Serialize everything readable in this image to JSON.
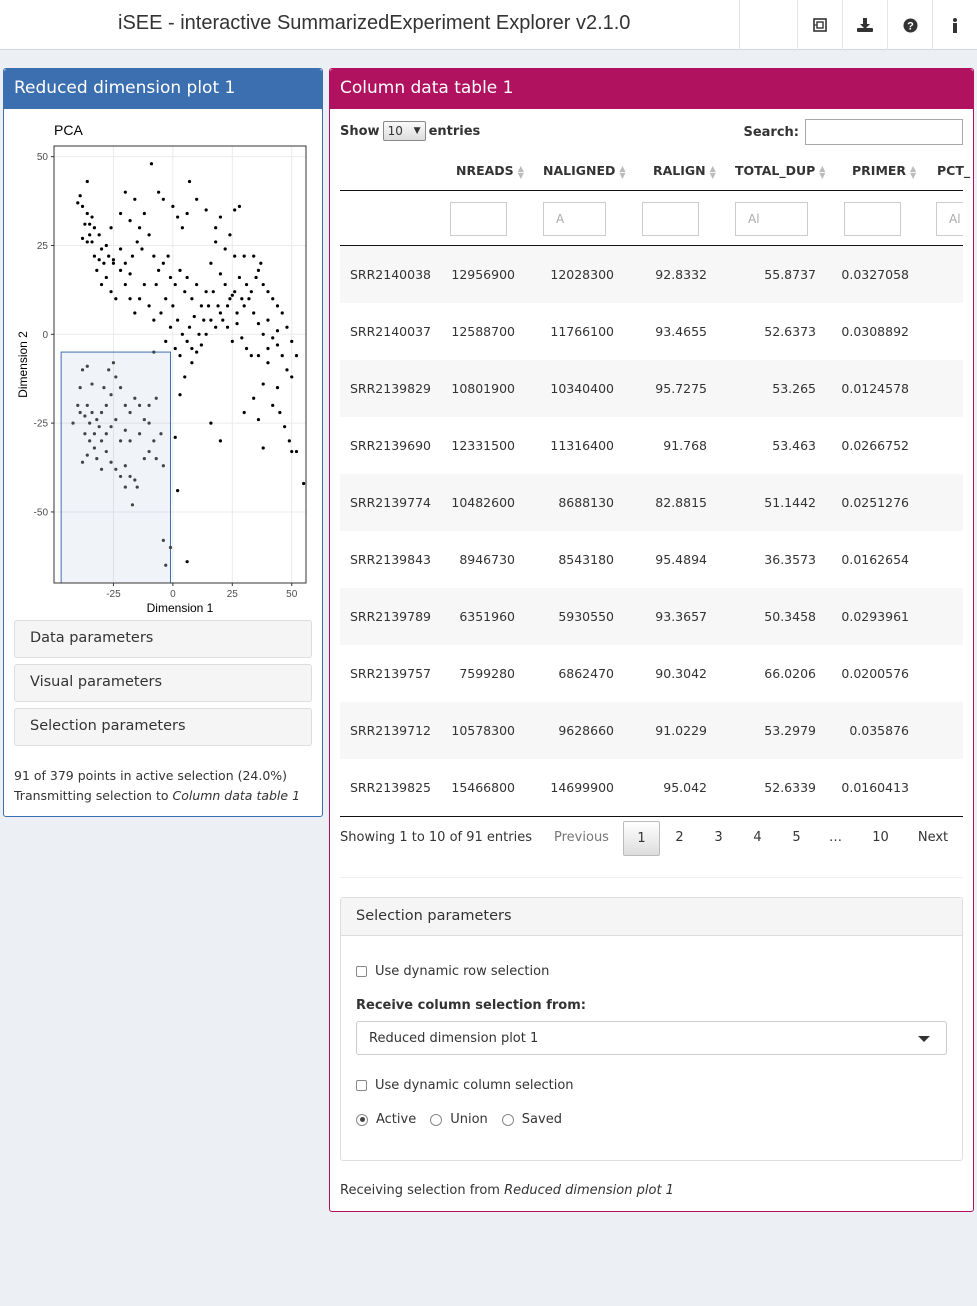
{
  "header": {
    "title": "iSEE - interactive SummarizedExperiment Explorer v2.1.0",
    "icons": [
      "panel-organization-icon",
      "download-icon",
      "help-icon",
      "info-icon"
    ]
  },
  "reduced_panel": {
    "title": "Reduced dimension plot 1",
    "collapsibles": [
      "Data parameters",
      "Visual parameters",
      "Selection parameters"
    ],
    "status_line1": "91 of 379 points in active selection (24.0%)",
    "status_prefix": "Transmitting selection to ",
    "status_target": "Column data table 1"
  },
  "chart_data": {
    "type": "scatter",
    "title": "PCA",
    "xlabel": "Dimension 1",
    "ylabel": "Dimension 2",
    "xlim": [
      -50,
      56
    ],
    "ylim": [
      -70,
      53
    ],
    "xticks": [
      -25,
      0,
      25,
      50
    ],
    "yticks": [
      50,
      25,
      0,
      -25,
      -50
    ],
    "grid": true,
    "selection_brush": {
      "x": [
        -47,
        -1
      ],
      "y": [
        -70,
        -5
      ]
    },
    "points": [
      [
        -9,
        48
      ],
      [
        -36,
        43
      ],
      [
        -39,
        39
      ],
      [
        -40,
        37
      ],
      [
        -38,
        36
      ],
      [
        -36,
        34
      ],
      [
        -34,
        33
      ],
      [
        -35,
        31
      ],
      [
        -37,
        31
      ],
      [
        -33,
        30
      ],
      [
        -35,
        28
      ],
      [
        -38,
        27
      ],
      [
        -36,
        26
      ],
      [
        -34,
        26
      ],
      [
        -31,
        28
      ],
      [
        -33,
        22
      ],
      [
        -31,
        21
      ],
      [
        -29,
        20
      ],
      [
        -27,
        22
      ],
      [
        -25,
        21
      ],
      [
        -22,
        24
      ],
      [
        -20,
        20
      ],
      [
        -18,
        17
      ],
      [
        -17,
        22
      ],
      [
        -15,
        26
      ],
      [
        -13,
        24
      ],
      [
        -10,
        28
      ],
      [
        -8,
        22
      ],
      [
        -6,
        18
      ],
      [
        -7,
        14
      ],
      [
        -4,
        20
      ],
      [
        -2,
        22
      ],
      [
        -1,
        16
      ],
      [
        1,
        14
      ],
      [
        3,
        18
      ],
      [
        5,
        12
      ],
      [
        6,
        16
      ],
      [
        8,
        10
      ],
      [
        10,
        14
      ],
      [
        12,
        8
      ],
      [
        14,
        12
      ],
      [
        16,
        20
      ],
      [
        18,
        26
      ],
      [
        20,
        17
      ],
      [
        22,
        14
      ],
      [
        24,
        10
      ],
      [
        26,
        12
      ],
      [
        28,
        16
      ],
      [
        30,
        8
      ],
      [
        32,
        10
      ],
      [
        34,
        6
      ],
      [
        36,
        3
      ],
      [
        38,
        0
      ],
      [
        40,
        4
      ],
      [
        42,
        -1
      ],
      [
        44,
        -3
      ],
      [
        46,
        -6
      ],
      [
        48,
        -10
      ],
      [
        50,
        -12
      ],
      [
        44,
        -15
      ],
      [
        42,
        -20
      ],
      [
        40,
        -8
      ],
      [
        38,
        -14
      ],
      [
        36,
        -24
      ],
      [
        34,
        -18
      ],
      [
        45,
        -22
      ],
      [
        47,
        -26
      ],
      [
        49,
        -30
      ],
      [
        52,
        -33
      ],
      [
        55,
        -42
      ],
      [
        50,
        -33
      ],
      [
        38,
        -32
      ],
      [
        30,
        -22
      ],
      [
        20,
        -30
      ],
      [
        16,
        -25
      ],
      [
        3,
        -17
      ],
      [
        5,
        -12
      ],
      [
        8,
        -8
      ],
      [
        10,
        -5
      ],
      [
        12,
        -3
      ],
      [
        14,
        0
      ],
      [
        16,
        4
      ],
      [
        18,
        2
      ],
      [
        20,
        6
      ],
      [
        23,
        8
      ],
      [
        25,
        11
      ],
      [
        27,
        3
      ],
      [
        29,
        -1
      ],
      [
        31,
        -4
      ],
      [
        33,
        -6
      ],
      [
        -6,
        40
      ],
      [
        -4,
        38
      ],
      [
        0,
        36
      ],
      [
        2,
        33
      ],
      [
        4,
        30
      ],
      [
        6,
        34
      ],
      [
        7,
        43
      ],
      [
        10,
        38
      ],
      [
        14,
        35
      ],
      [
        18,
        30
      ],
      [
        20,
        33
      ],
      [
        26,
        35
      ],
      [
        28,
        36
      ],
      [
        24,
        28
      ],
      [
        22,
        24
      ],
      [
        26,
        22
      ],
      [
        30,
        22
      ],
      [
        34,
        22
      ],
      [
        36,
        18
      ],
      [
        38,
        14
      ],
      [
        40,
        12
      ],
      [
        42,
        10
      ],
      [
        44,
        8
      ],
      [
        46,
        6
      ],
      [
        48,
        2
      ],
      [
        50,
        -2
      ],
      [
        52,
        -6
      ],
      [
        44,
        1
      ],
      [
        40,
        -4
      ],
      [
        36,
        -6
      ],
      [
        -16,
        6
      ],
      [
        -14,
        10
      ],
      [
        -12,
        14
      ],
      [
        -10,
        8
      ],
      [
        -8,
        4
      ],
      [
        -5,
        6
      ],
      [
        -3,
        10
      ],
      [
        0,
        8
      ],
      [
        2,
        4
      ],
      [
        4,
        0
      ],
      [
        6,
        -2
      ],
      [
        8,
        -4
      ],
      [
        -20,
        14
      ],
      [
        -22,
        18
      ],
      [
        -25,
        20
      ],
      [
        -28,
        16
      ],
      [
        -30,
        14
      ],
      [
        -26,
        12
      ],
      [
        -24,
        10
      ],
      [
        -18,
        10
      ],
      [
        -32,
        18
      ],
      [
        -30,
        24
      ],
      [
        -28,
        25
      ],
      [
        -26,
        30
      ],
      [
        -22,
        34
      ],
      [
        -18,
        32
      ],
      [
        -14,
        30
      ],
      [
        -12,
        34
      ],
      [
        -16,
        38
      ],
      [
        -20,
        40
      ],
      [
        -1,
        2
      ],
      [
        -3,
        -2
      ],
      [
        1,
        -4
      ],
      [
        3,
        -6
      ],
      [
        7,
        2
      ],
      [
        9,
        5
      ],
      [
        11,
        0
      ],
      [
        13,
        4
      ],
      [
        15,
        8
      ],
      [
        17,
        12
      ],
      [
        19,
        8
      ],
      [
        21,
        4
      ],
      [
        23,
        2
      ],
      [
        25,
        -2
      ],
      [
        27,
        6
      ],
      [
        29,
        10
      ],
      [
        31,
        14
      ],
      [
        33,
        12
      ],
      [
        35,
        16
      ],
      [
        37,
        20
      ],
      [
        -38,
        -10
      ],
      [
        -40,
        -20
      ],
      [
        -39,
        -22
      ],
      [
        -37,
        -23
      ],
      [
        -36,
        -20
      ],
      [
        -35,
        -25
      ],
      [
        -34,
        -22
      ],
      [
        -33,
        -28
      ],
      [
        -35,
        -30
      ],
      [
        -37,
        -28
      ],
      [
        -32,
        -24
      ],
      [
        -31,
        -26
      ],
      [
        -33,
        -32
      ],
      [
        -36,
        -34
      ],
      [
        -38,
        -36
      ],
      [
        -30,
        -30
      ],
      [
        -28,
        -33
      ],
      [
        -26,
        -36
      ],
      [
        -24,
        -38
      ],
      [
        -22,
        -40
      ],
      [
        -20,
        -37
      ],
      [
        -18,
        -40
      ],
      [
        -16,
        -41
      ],
      [
        -15,
        -43
      ],
      [
        -20,
        -43
      ],
      [
        -17,
        -48
      ],
      [
        -12,
        -35
      ],
      [
        -10,
        -33
      ],
      [
        -8,
        -30
      ],
      [
        -5,
        -28
      ],
      [
        -7,
        -35
      ],
      [
        -4,
        -37
      ],
      [
        -12,
        -24
      ],
      [
        -14,
        -20
      ],
      [
        -16,
        -18
      ],
      [
        -18,
        -22
      ],
      [
        -20,
        -20
      ],
      [
        -22,
        -15
      ],
      [
        -24,
        -12
      ],
      [
        -26,
        -17
      ],
      [
        -28,
        -20
      ],
      [
        -30,
        -22
      ],
      [
        -29,
        -15
      ],
      [
        -27,
        -10
      ],
      [
        -25,
        -8
      ],
      [
        -36,
        -9
      ],
      [
        -42,
        -25
      ],
      [
        -39,
        -15
      ],
      [
        -34,
        -14
      ],
      [
        -32,
        -35
      ],
      [
        -30,
        -38
      ],
      [
        -28,
        -28
      ],
      [
        -26,
        -26
      ],
      [
        -24,
        -24
      ],
      [
        -22,
        -30
      ],
      [
        -20,
        -27
      ],
      [
        -18,
        -30
      ],
      [
        -14,
        -28
      ],
      [
        -10,
        -20
      ],
      [
        -7,
        -18
      ]
    ],
    "outside_points": [
      [
        -4,
        -58
      ],
      [
        -1,
        -60
      ],
      [
        -3,
        -65
      ],
      [
        6,
        -64
      ],
      [
        2,
        -44
      ],
      [
        1,
        -29
      ],
      [
        -10,
        -25
      ],
      [
        -8,
        -5
      ]
    ]
  },
  "column_panel": {
    "title": "Column data table 1",
    "show_label": "Show",
    "entries_label": "entries",
    "page_length": "10",
    "search_label": "Search:",
    "search_value": "",
    "columns": [
      "NREADS",
      "NALIGNED",
      "RALIGN",
      "TOTAL_DUP",
      "PRIMER",
      "PCT_"
    ],
    "filter_placeholders": [
      "",
      "A",
      "",
      "Al",
      "",
      "Al"
    ],
    "rows": [
      [
        "SRR2140038",
        "12956900",
        "12028300",
        "92.8332",
        "55.8737",
        "0.0327058"
      ],
      [
        "SRR2140037",
        "12588700",
        "11766100",
        "93.4655",
        "52.6373",
        "0.0308892"
      ],
      [
        "SRR2139829",
        "10801900",
        "10340400",
        "95.7275",
        "53.265",
        "0.0124578"
      ],
      [
        "SRR2139690",
        "12331500",
        "11316400",
        "91.768",
        "53.463",
        "0.0266752"
      ],
      [
        "SRR2139774",
        "10482600",
        "8688130",
        "82.8815",
        "51.1442",
        "0.0251276"
      ],
      [
        "SRR2139843",
        "8946730",
        "8543180",
        "95.4894",
        "36.3573",
        "0.0162654"
      ],
      [
        "SRR2139789",
        "6351960",
        "5930550",
        "93.3657",
        "50.3458",
        "0.0293961"
      ],
      [
        "SRR2139757",
        "7599280",
        "6862470",
        "90.3042",
        "66.0206",
        "0.0200576"
      ],
      [
        "SRR2139712",
        "10578300",
        "9628660",
        "91.0229",
        "53.2979",
        "0.035876"
      ],
      [
        "SRR2139825",
        "15466800",
        "14699900",
        "95.042",
        "52.6339",
        "0.0160413"
      ]
    ],
    "info": "Showing 1 to 10 of 91 entries",
    "pagination": [
      "Previous",
      "1",
      "2",
      "3",
      "4",
      "5",
      "…",
      "10",
      "Next"
    ],
    "selection_panel": {
      "title": "Selection parameters",
      "dynamic_row": "Use dynamic row selection",
      "receive_label": "Receive column selection from:",
      "receive_value": "Reduced dimension plot 1",
      "dynamic_col": "Use dynamic column selection",
      "radio_options": [
        "Active",
        "Union",
        "Saved"
      ],
      "radio_selected": "Active"
    },
    "receiving_prefix": "Receiving selection from ",
    "receiving_source": "Reduced dimension plot 1"
  }
}
